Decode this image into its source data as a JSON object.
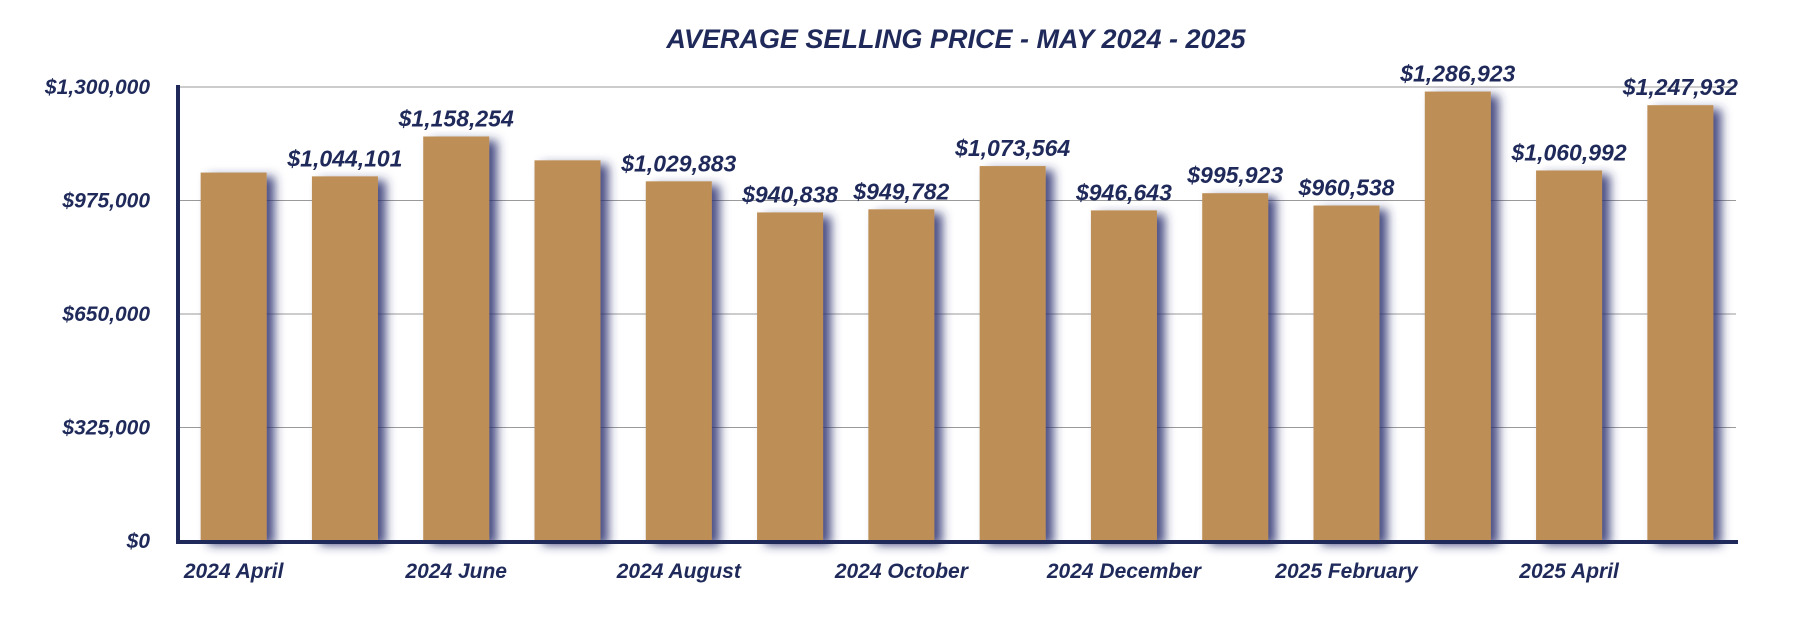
{
  "colors": {
    "bar": "#bd8f57",
    "bar_shadow": "#2a2f6e",
    "text": "#1f2a5a",
    "grid": "#9a9a9a",
    "axis": "#1f2a5a"
  },
  "chart_data": {
    "type": "bar",
    "title": "AVERAGE SELLING PRICE - MAY 2024 - 2025",
    "xlabel": "",
    "ylabel": "",
    "ylim": [
      0,
      1300000
    ],
    "grid": true,
    "legend": "none",
    "y_ticks": [
      {
        "value": 0,
        "label": "$0"
      },
      {
        "value": 325000,
        "label": "$325,000"
      },
      {
        "value": 650000,
        "label": "$650,000"
      },
      {
        "value": 975000,
        "label": "$975,000"
      },
      {
        "value": 1300000,
        "label": "$1,300,000"
      }
    ],
    "x_tick_labels": [
      {
        "index": 0,
        "label": "2024 April"
      },
      {
        "index": 2,
        "label": "2024 June"
      },
      {
        "index": 4,
        "label": "2024 August"
      },
      {
        "index": 6,
        "label": "2024 October"
      },
      {
        "index": 8,
        "label": "2024 December"
      },
      {
        "index": 10,
        "label": "2025 February"
      },
      {
        "index": 12,
        "label": "2025 April"
      }
    ],
    "bars": [
      {
        "value": 1055000,
        "label": ""
      },
      {
        "value": 1044101,
        "label": "$1,044,101"
      },
      {
        "value": 1158254,
        "label": "$1,158,254"
      },
      {
        "value": 1090000,
        "label": ""
      },
      {
        "value": 1029883,
        "label": "$1,029,883"
      },
      {
        "value": 940838,
        "label": "$940,838"
      },
      {
        "value": 949782,
        "label": "$949,782"
      },
      {
        "value": 1073564,
        "label": "$1,073,564"
      },
      {
        "value": 946643,
        "label": "$946,643"
      },
      {
        "value": 995923,
        "label": "$995,923"
      },
      {
        "value": 960538,
        "label": "$960,538"
      },
      {
        "value": 1286923,
        "label": "$1,286,923"
      },
      {
        "value": 1060992,
        "label": "$1,060,992"
      },
      {
        "value": 1247932,
        "label": "$1,247,932"
      }
    ]
  }
}
